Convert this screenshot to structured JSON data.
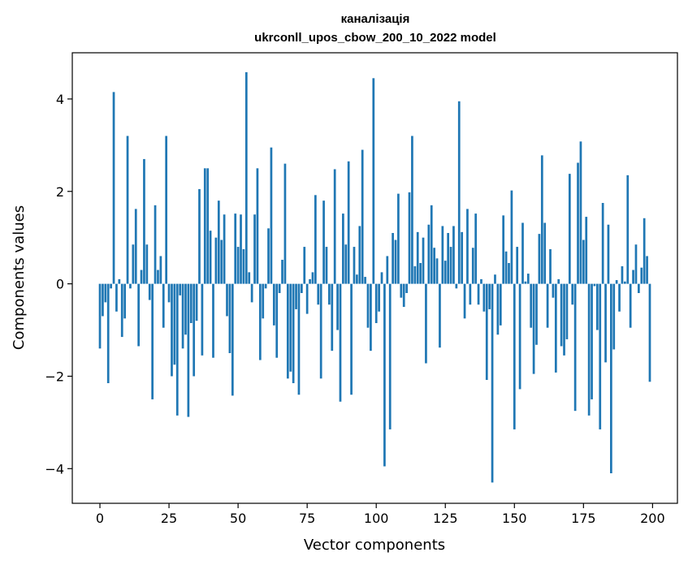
{
  "chart_data": {
    "type": "bar",
    "title_line1": "каналізація",
    "title_line2": "ukrconll_upos_cbow_200_10_2022 model",
    "xlabel": "Vector components",
    "ylabel": "Components values",
    "xlim": [
      -10,
      209
    ],
    "ylim": [
      -4.75,
      5.0
    ],
    "xticks": [
      0,
      25,
      50,
      75,
      100,
      125,
      150,
      175,
      200
    ],
    "xtick_labels": [
      "0",
      "25",
      "50",
      "75",
      "100",
      "125",
      "150",
      "175",
      "200"
    ],
    "yticks": [
      -4,
      -2,
      0,
      2,
      4
    ],
    "ytick_labels": [
      "−4",
      "−2",
      "0",
      "2",
      "4"
    ],
    "bar_color": "#1f77b4",
    "grid": false,
    "x": [
      0,
      1,
      2,
      3,
      4,
      5,
      6,
      7,
      8,
      9,
      10,
      11,
      12,
      13,
      14,
      15,
      16,
      17,
      18,
      19,
      20,
      21,
      22,
      23,
      24,
      25,
      26,
      27,
      28,
      29,
      30,
      31,
      32,
      33,
      34,
      35,
      36,
      37,
      38,
      39,
      40,
      41,
      42,
      43,
      44,
      45,
      46,
      47,
      48,
      49,
      50,
      51,
      52,
      53,
      54,
      55,
      56,
      57,
      58,
      59,
      60,
      61,
      62,
      63,
      64,
      65,
      66,
      67,
      68,
      69,
      70,
      71,
      72,
      73,
      74,
      75,
      76,
      77,
      78,
      79,
      80,
      81,
      82,
      83,
      84,
      85,
      86,
      87,
      88,
      89,
      90,
      91,
      92,
      93,
      94,
      95,
      96,
      97,
      98,
      99,
      100,
      101,
      102,
      103,
      104,
      105,
      106,
      107,
      108,
      109,
      110,
      111,
      112,
      113,
      114,
      115,
      116,
      117,
      118,
      119,
      120,
      121,
      122,
      123,
      124,
      125,
      126,
      127,
      128,
      129,
      130,
      131,
      132,
      133,
      134,
      135,
      136,
      137,
      138,
      139,
      140,
      141,
      142,
      143,
      144,
      145,
      146,
      147,
      148,
      149,
      150,
      151,
      152,
      153,
      154,
      155,
      156,
      157,
      158,
      159,
      160,
      161,
      162,
      163,
      164,
      165,
      166,
      167,
      168,
      169,
      170,
      171,
      172,
      173,
      174,
      175,
      176,
      177,
      178,
      179,
      180,
      181,
      182,
      183,
      184,
      185,
      186,
      187,
      188,
      189,
      190,
      191,
      192,
      193,
      194,
      195,
      196,
      197,
      198,
      199
    ],
    "values": [
      -1.4,
      -0.7,
      -0.4,
      -2.15,
      -0.1,
      4.15,
      -0.6,
      0.1,
      -1.15,
      -0.75,
      3.2,
      -0.1,
      0.85,
      1.62,
      -1.35,
      0.3,
      2.7,
      0.85,
      -0.35,
      -2.5,
      1.7,
      0.3,
      0.6,
      -0.95,
      3.2,
      -0.4,
      -2.0,
      -1.75,
      -2.85,
      -0.25,
      -1.4,
      -1.1,
      -2.88,
      -0.85,
      -2.0,
      -0.8,
      2.05,
      -1.55,
      2.5,
      2.5,
      1.15,
      -1.6,
      1.0,
      1.8,
      0.95,
      1.5,
      -0.7,
      -1.5,
      -2.42,
      1.52,
      0.8,
      1.5,
      0.75,
      4.58,
      0.25,
      -0.4,
      1.5,
      2.5,
      -1.65,
      -0.75,
      -0.1,
      1.2,
      2.95,
      -0.9,
      -1.6,
      -0.2,
      0.52,
      2.6,
      -2.05,
      -1.9,
      -2.15,
      -0.55,
      -2.4,
      -0.2,
      0.8,
      -0.65,
      0.1,
      0.25,
      1.92,
      -0.45,
      -2.05,
      1.8,
      0.8,
      -0.45,
      -1.45,
      2.48,
      -1.0,
      -2.55,
      1.52,
      0.85,
      2.65,
      -2.4,
      0.8,
      0.2,
      1.25,
      2.9,
      0.15,
      -0.95,
      -1.45,
      4.45,
      -0.85,
      -0.6,
      0.25,
      -3.95,
      0.6,
      -3.15,
      1.1,
      0.95,
      1.95,
      -0.3,
      -0.5,
      -0.2,
      1.98,
      3.2,
      0.38,
      1.12,
      0.45,
      1.0,
      -1.72,
      1.28,
      1.7,
      0.78,
      0.55,
      -1.38,
      1.25,
      0.5,
      1.1,
      0.8,
      1.25,
      -0.1,
      3.95,
      1.12,
      -0.75,
      1.62,
      -0.45,
      0.78,
      1.52,
      -0.45,
      0.1,
      -0.6,
      -2.08,
      -0.55,
      -4.3,
      0.2,
      -1.1,
      -0.9,
      1.48,
      0.7,
      0.45,
      2.02,
      -3.15,
      0.8,
      -2.28,
      1.32,
      0.05,
      0.22,
      -0.95,
      -1.95,
      -1.32,
      1.08,
      2.78,
      1.32,
      -0.95,
      0.75,
      -0.3,
      -1.92,
      0.1,
      -1.35,
      -1.55,
      -1.2,
      2.38,
      -0.45,
      -2.75,
      2.62,
      3.08,
      0.95,
      1.45,
      -2.85,
      -2.5,
      -0.05,
      -1.0,
      -3.15,
      1.75,
      -1.7,
      1.28,
      -4.1,
      -1.42,
      0.08,
      -0.6,
      0.38,
      0.05,
      2.35,
      -0.95,
      0.3,
      0.85,
      -0.2,
      0.35,
      1.42,
      0.6,
      -2.12
    ]
  }
}
